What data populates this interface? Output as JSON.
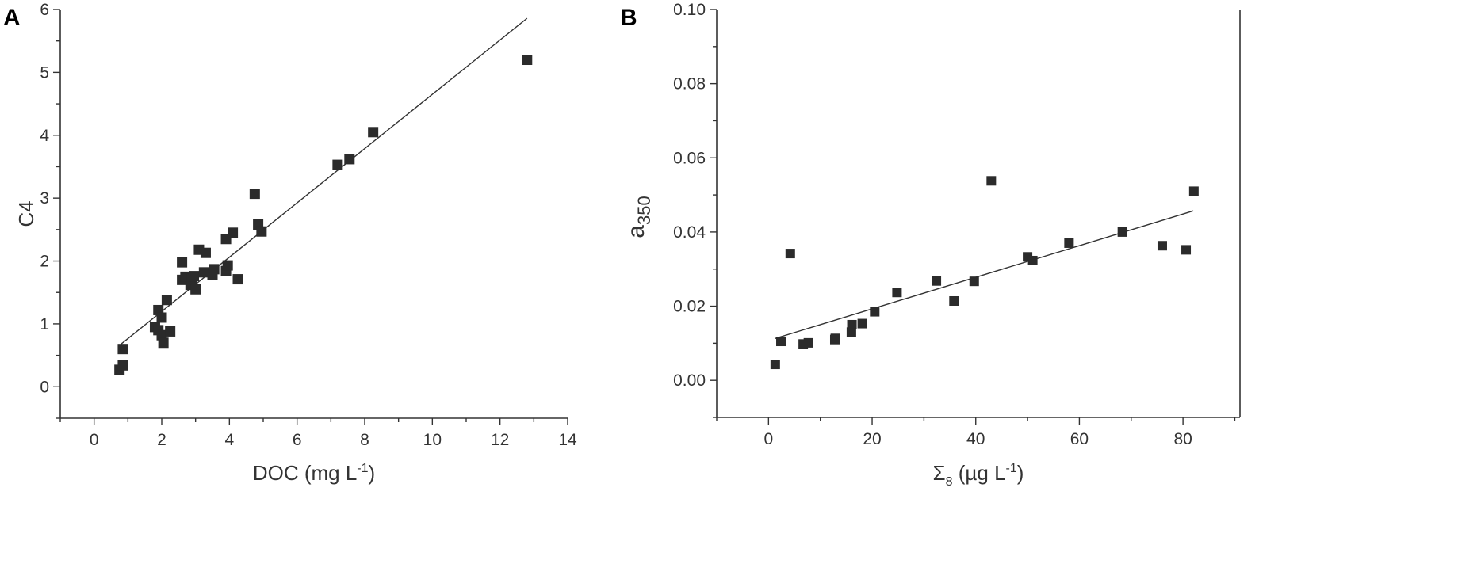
{
  "chart_data": [
    {
      "panel": "A",
      "type": "scatter",
      "xlabel": "DOC (mg L",
      "xlabel_sup": "-1",
      "xlabel_end": ")",
      "ylabel": "C4",
      "xlim": [
        -1,
        14
      ],
      "ylim": [
        -0.5,
        6
      ],
      "xticks": [
        0,
        2,
        4,
        6,
        8,
        10,
        12,
        14
      ],
      "yticks": [
        0,
        1,
        2,
        3,
        4,
        5,
        6
      ],
      "grid": false,
      "points": [
        [
          0.75,
          0.27
        ],
        [
          0.85,
          0.34
        ],
        [
          0.85,
          0.6
        ],
        [
          1.8,
          0.95
        ],
        [
          1.9,
          0.9
        ],
        [
          1.9,
          1.22
        ],
        [
          2.0,
          1.1
        ],
        [
          2.0,
          0.82
        ],
        [
          2.05,
          0.7
        ],
        [
          2.15,
          1.38
        ],
        [
          2.25,
          0.88
        ],
        [
          2.6,
          1.7
        ],
        [
          2.6,
          1.98
        ],
        [
          2.7,
          1.75
        ],
        [
          2.85,
          1.62
        ],
        [
          2.9,
          1.72
        ],
        [
          2.95,
          1.76
        ],
        [
          3.0,
          1.55
        ],
        [
          3.1,
          2.18
        ],
        [
          3.25,
          1.82
        ],
        [
          3.3,
          2.13
        ],
        [
          3.5,
          1.78
        ],
        [
          3.55,
          1.87
        ],
        [
          3.9,
          2.35
        ],
        [
          3.9,
          1.84
        ],
        [
          3.95,
          1.93
        ],
        [
          4.1,
          2.45
        ],
        [
          4.25,
          1.71
        ],
        [
          4.75,
          3.07
        ],
        [
          4.85,
          2.58
        ],
        [
          4.95,
          2.47
        ],
        [
          7.2,
          3.53
        ],
        [
          7.55,
          3.62
        ],
        [
          8.25,
          4.05
        ],
        [
          12.8,
          5.2
        ]
      ],
      "fit": {
        "x": [
          0.8,
          12.8
        ],
        "y": [
          0.68,
          5.86
        ]
      }
    },
    {
      "panel": "B",
      "type": "scatter",
      "xlabel": "Σ",
      "xlabel_sub": "8",
      "xlabel_end": " (µg L",
      "xlabel_sup": "-1",
      "xlabel_close": ")",
      "ylabel": "a",
      "ylabel_sub": "350",
      "xlim": [
        -10,
        91
      ],
      "ylim": [
        -0.01,
        0.1
      ],
      "xticks": [
        0,
        20,
        40,
        60,
        80
      ],
      "yticks": [
        0.0,
        0.02,
        0.04,
        0.06,
        0.08,
        0.1
      ],
      "ytick_labels": [
        "0.00",
        "0.02",
        "0.04",
        "0.06",
        "0.08",
        "0.10"
      ],
      "grid": false,
      "points": [
        [
          1.3,
          0.0043
        ],
        [
          2.4,
          0.0105
        ],
        [
          4.2,
          0.0342
        ],
        [
          6.7,
          0.0098
        ],
        [
          7.7,
          0.0101
        ],
        [
          12.8,
          0.011
        ],
        [
          12.9,
          0.0113
        ],
        [
          16.0,
          0.013
        ],
        [
          16.1,
          0.015
        ],
        [
          18.1,
          0.0153
        ],
        [
          20.5,
          0.0185
        ],
        [
          24.8,
          0.0237
        ],
        [
          32.4,
          0.0268
        ],
        [
          35.8,
          0.0214
        ],
        [
          39.7,
          0.0267
        ],
        [
          43.0,
          0.0538
        ],
        [
          50.0,
          0.0333
        ],
        [
          51.0,
          0.0323
        ],
        [
          58.0,
          0.037
        ],
        [
          68.3,
          0.04
        ],
        [
          76.0,
          0.0363
        ],
        [
          80.6,
          0.0352
        ],
        [
          82.1,
          0.051
        ]
      ],
      "fit": {
        "x": [
          1.3,
          82.0
        ],
        "y": [
          0.0113,
          0.0457
        ]
      }
    }
  ]
}
